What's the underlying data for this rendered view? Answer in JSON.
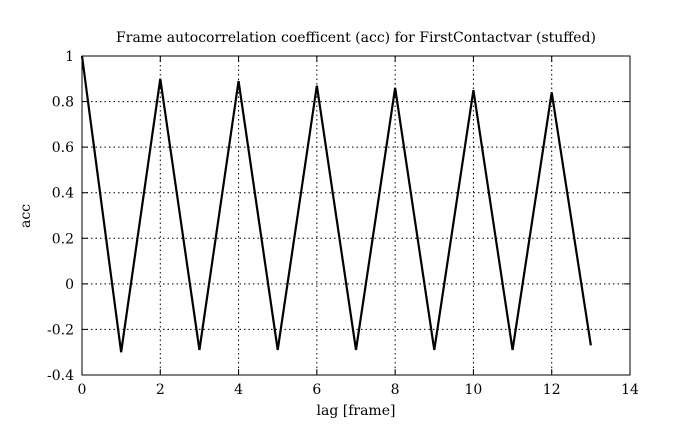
{
  "chart_data": {
    "type": "line",
    "title": "Frame autocorrelation coefficent (acc) for FirstContactvar (stuffed)",
    "xlabel": "lag [frame]",
    "ylabel": "acc",
    "xlim": [
      0,
      14
    ],
    "ylim": [
      -0.4,
      1
    ],
    "xticks": [
      0,
      2,
      4,
      6,
      8,
      10,
      12,
      14
    ],
    "xtick_labels": [
      "0",
      "2",
      "4",
      "6",
      "8",
      "10",
      "12",
      "14"
    ],
    "yticks": [
      -0.4,
      -0.2,
      0,
      0.2,
      0.4,
      0.6,
      0.8,
      1
    ],
    "ytick_labels": [
      "-0.4",
      "-0.2",
      "0",
      "0.2",
      "0.4",
      "0.6",
      "0.8",
      "1"
    ],
    "grid": true,
    "legend": "none",
    "series": [
      {
        "x": [
          0,
          1,
          2,
          3,
          4,
          5,
          6,
          7,
          8,
          9,
          10,
          11,
          12,
          13
        ],
        "y": [
          1.0,
          -0.3,
          0.9,
          -0.29,
          0.89,
          -0.29,
          0.87,
          -0.29,
          0.86,
          -0.29,
          0.85,
          -0.29,
          0.84,
          -0.27
        ],
        "color": "#000000"
      }
    ]
  }
}
